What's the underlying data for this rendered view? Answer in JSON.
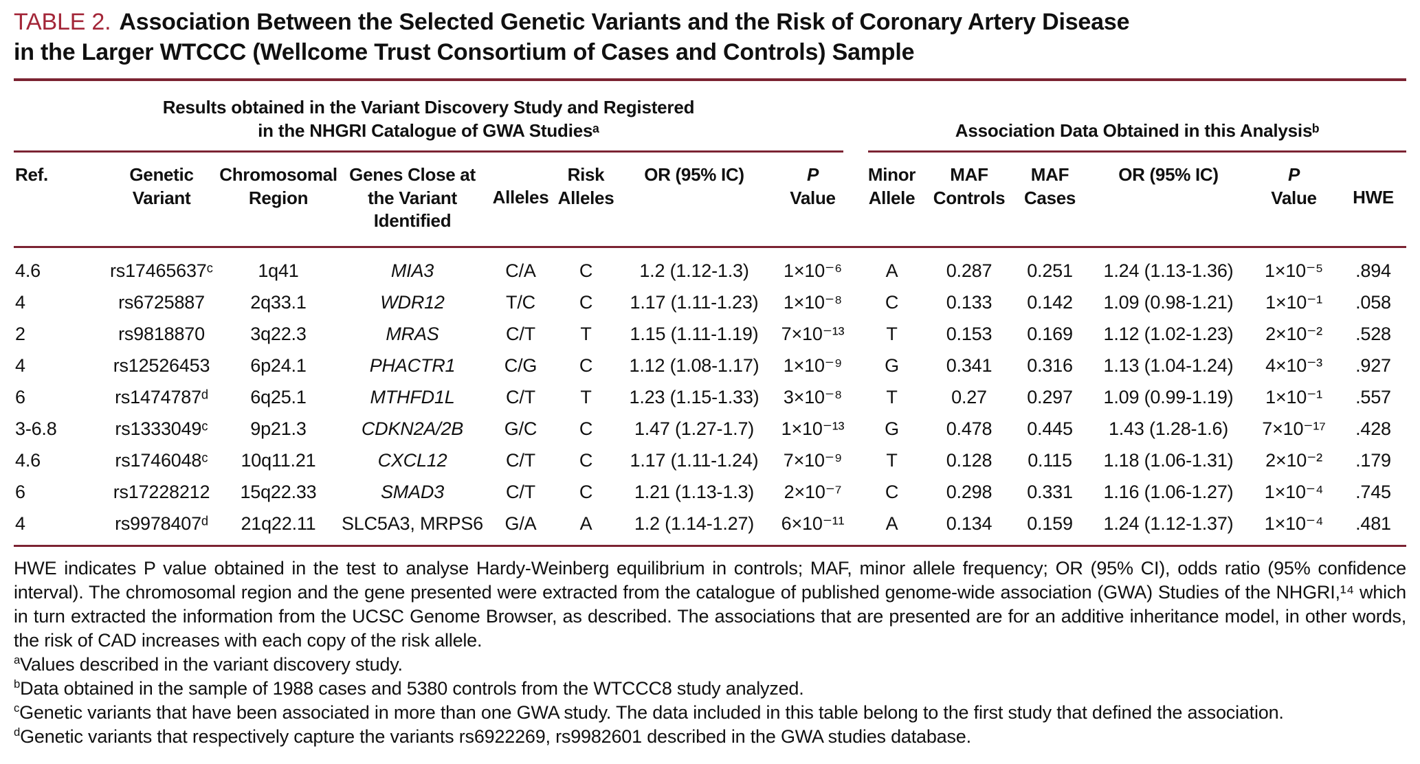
{
  "title": {
    "label": "TABLE 2.",
    "line1": "Association Between the Selected Genetic Variants and the Risk of Coronary Artery Disease",
    "line2": "in the Larger WTCCC (Wellcome Trust Consortium of Cases and Controls) Sample"
  },
  "colors": {
    "rule_maroon": "#7B2332",
    "title_red": "#A32638",
    "text": "#101010",
    "background": "#FFFFFF"
  },
  "table": {
    "group_headers": [
      {
        "label": "Results obtained in the Variant Discovery Study and Registered in the NHGRI Catalogue of GWA Studiesᵃ"
      },
      {
        "label": "Association Data Obtained in this Analysisᵇ"
      }
    ],
    "columns": [
      {
        "key": "ref",
        "label": "Ref."
      },
      {
        "key": "variant",
        "label": "Genetic Variant"
      },
      {
        "key": "region",
        "label": "Chromosomal Region"
      },
      {
        "key": "genes",
        "label": "Genes Close at the Variant Identified"
      },
      {
        "key": "alleles",
        "label": "Alleles"
      },
      {
        "key": "risk",
        "label": "Risk Alleles"
      },
      {
        "key": "or-discovery",
        "label": "OR (95% IC)"
      },
      {
        "key": "p-discovery",
        "label": "P",
        "label2": "Value"
      },
      {
        "key": "minor",
        "label": "Minor Allele"
      },
      {
        "key": "maf-controls",
        "label": "MAF Controls"
      },
      {
        "key": "maf-cases",
        "label": "MAF Cases"
      },
      {
        "key": "or-analysis",
        "label": "OR (95% IC)"
      },
      {
        "key": "p-analysis",
        "label": "P",
        "label2": "Value"
      },
      {
        "key": "hwe",
        "label": "HWE"
      }
    ],
    "rows": [
      {
        "cells": [
          "4.6",
          "rs17465637ᶜ",
          "1q41",
          "MIA3",
          "C/A",
          "C",
          "1.2 (1.12-1.3)",
          "1×10⁻⁶",
          "A",
          "0.287",
          "0.251",
          "1.24 (1.13-1.36)",
          "1×10⁻⁵",
          ".894"
        ]
      },
      {
        "cells": [
          "4",
          "rs6725887",
          "2q33.1",
          "WDR12",
          "T/C",
          "C",
          "1.17 (1.11-1.23)",
          "1×10⁻⁸",
          "C",
          "0.133",
          "0.142",
          "1.09 (0.98-1.21)",
          "1×10⁻¹",
          ".058"
        ]
      },
      {
        "cells": [
          "2",
          "rs9818870",
          "3q22.3",
          "MRAS",
          "C/T",
          "T",
          "1.15 (1.11-1.19)",
          "7×10⁻¹³",
          "T",
          "0.153",
          "0.169",
          "1.12 (1.02-1.23)",
          "2×10⁻²",
          ".528"
        ]
      },
      {
        "cells": [
          "4",
          "rs12526453",
          "6p24.1",
          "PHACTR1",
          "C/G",
          "C",
          "1.12 (1.08-1.17)",
          "1×10⁻⁹",
          "G",
          "0.341",
          "0.316",
          "1.13 (1.04-1.24)",
          "4×10⁻³",
          ".927"
        ]
      },
      {
        "cells": [
          "6",
          "rs1474787ᵈ",
          "6q25.1",
          "MTHFD1L",
          "C/T",
          "T",
          "1.23 (1.15-1.33)",
          "3×10⁻⁸",
          "T",
          "0.27",
          "0.297",
          "1.09 (0.99-1.19)",
          "1×10⁻¹",
          ".557"
        ]
      },
      {
        "cells": [
          "3-6.8",
          "rs1333049ᶜ",
          "9p21.3",
          "CDKN2A/2B",
          "G/C",
          "C",
          "1.47 (1.27-1.7)",
          "1×10⁻¹³",
          "G",
          "0.478",
          "0.445",
          "1.43 (1.28-1.6)",
          "7×10⁻¹⁷",
          ".428"
        ]
      },
      {
        "cells": [
          "4.6",
          "rs1746048ᶜ",
          "10q11.21",
          "CXCL12",
          "C/T",
          "C",
          "1.17 (1.11-1.24)",
          "7×10⁻⁹",
          "T",
          "0.128",
          "0.115",
          "1.18 (1.06-1.31)",
          "2×10⁻²",
          ".179"
        ]
      },
      {
        "cells": [
          "6",
          "rs17228212",
          "15q22.33",
          "SMAD3",
          "C/T",
          "C",
          "1.21 (1.13-1.3)",
          "2×10⁻⁷",
          "C",
          "0.298",
          "0.331",
          "1.16 (1.06-1.27)",
          "1×10⁻⁴",
          ".745"
        ]
      },
      {
        "italic": false,
        "cells": [
          "4",
          "rs9978407ᵈ",
          "21q22.11",
          "SLC5A3, MRPS6",
          "G/A",
          "A",
          "1.2 (1.14-1.27)",
          "6×10⁻¹¹",
          "A",
          "0.134",
          "0.159",
          "1.24 (1.12-1.37)",
          "1×10⁻⁴",
          ".481"
        ]
      }
    ]
  },
  "footnotes": {
    "general": "HWE indicates P value obtained in the test to analyse Hardy-Weinberg equilibrium in controls; MAF, minor allele frequency; OR (95% CI), odds ratio (95% confidence interval). The chromosomal region and the gene presented were extracted from the catalogue of published genome-wide association (GWA) Studies of the NHGRI,¹⁴ which in turn extracted the information from the UCSC Genome Browser, as described. The associations that are presented are for an additive inheritance model, in other words, the risk of CAD increases with each copy of the risk allele.",
    "items": [
      {
        "marker": "a",
        "text": "Values described in the variant discovery study."
      },
      {
        "marker": "b",
        "text": "Data obtained in the sample of 1988 cases and 5380 controls from the WTCCC8 study analyzed."
      },
      {
        "marker": "c",
        "text": "Genetic variants that have been associated in more than one GWA study. The data included in this table belong to the first study that defined the association."
      },
      {
        "marker": "d",
        "text": "Genetic variants that respectively capture the variants rs6922269, rs9982601 described in the GWA studies database."
      }
    ]
  }
}
